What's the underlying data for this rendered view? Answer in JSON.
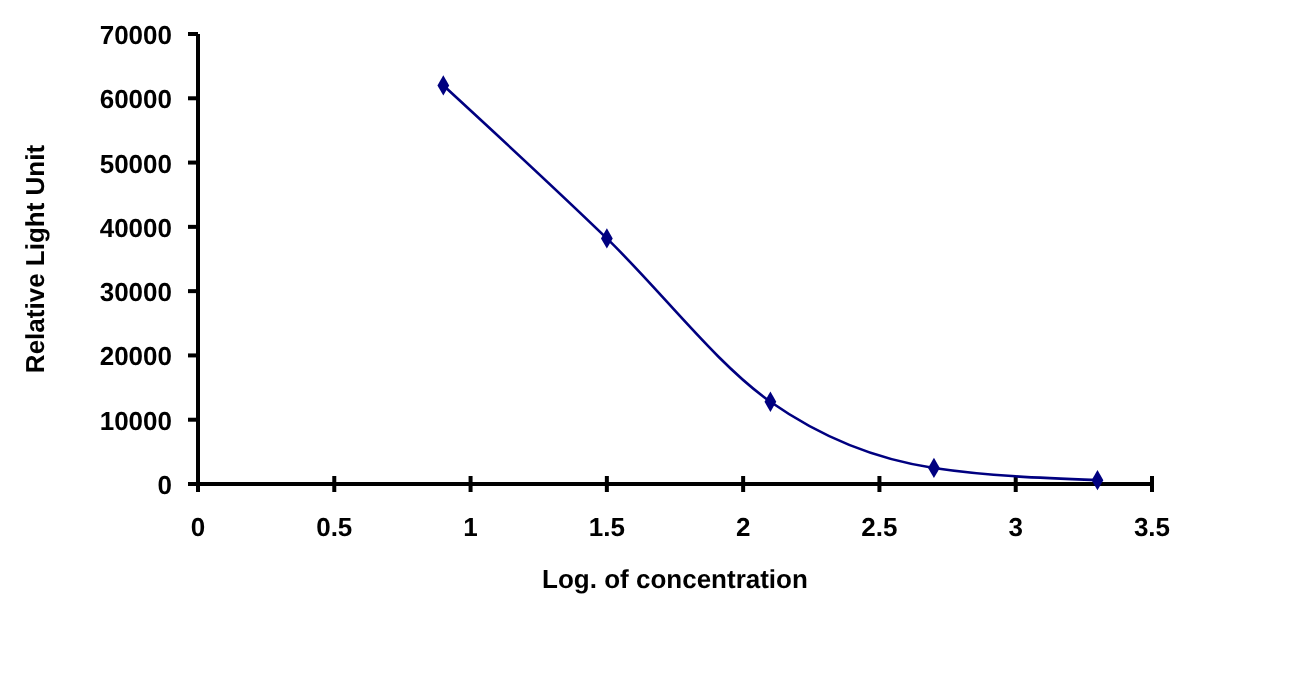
{
  "chart_data": {
    "type": "line",
    "xlabel": "Log. of concentration",
    "ylabel": "Relative Light Unit",
    "x": [
      0.9,
      1.5,
      2.1,
      2.7,
      3.3
    ],
    "series": [
      {
        "color": "#000080",
        "values": [
          62000,
          38200,
          12800,
          2500,
          600
        ]
      }
    ],
    "xlim": [
      0,
      3.5
    ],
    "xticks": [
      0,
      0.5,
      1,
      1.5,
      2,
      2.5,
      3,
      3.5
    ],
    "ylim": [
      0,
      70000
    ],
    "yticks": [
      0,
      10000,
      20000,
      30000,
      40000,
      50000,
      60000,
      70000
    ],
    "marker": "diamond",
    "line_style": "solid"
  }
}
